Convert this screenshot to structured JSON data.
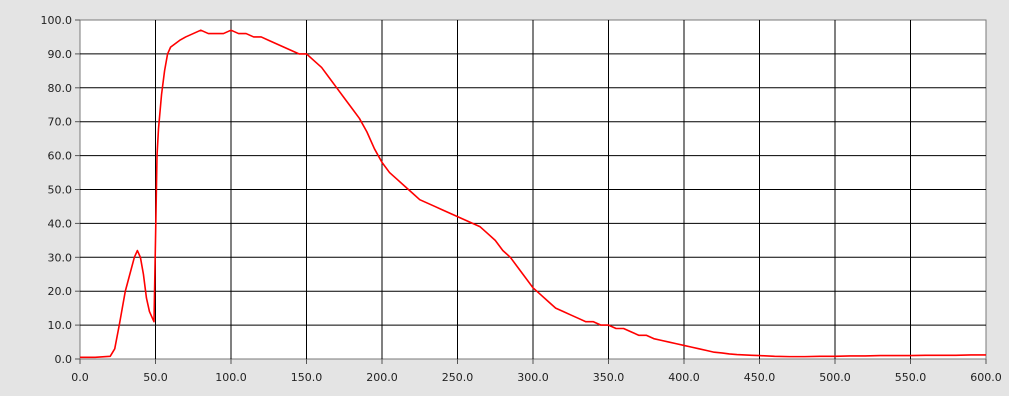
{
  "chart_data": {
    "type": "line",
    "title": "",
    "xlabel": "",
    "ylabel": "",
    "xlim": [
      0,
      600
    ],
    "ylim": [
      0,
      100
    ],
    "x_ticks": [
      "0.0",
      "50.0",
      "100.0",
      "150.0",
      "200.0",
      "250.0",
      "300.0",
      "350.0",
      "400.0",
      "450.0",
      "500.0",
      "550.0",
      "600.0"
    ],
    "y_ticks": [
      "0.0",
      "10.0",
      "20.0",
      "30.0",
      "40.0",
      "50.0",
      "60.0",
      "70.0",
      "80.0",
      "90.0",
      "100.0"
    ],
    "grid": true,
    "legend": "none",
    "colors": {
      "series": "#ff0000",
      "grid": "#000000",
      "plot_bg": "#ffffff",
      "frame_bg": "#e4e4e4"
    },
    "series": [
      {
        "x": [
          0,
          10,
          20,
          23,
          26,
          28,
          30,
          33,
          36,
          38,
          40,
          42,
          44,
          46,
          48,
          49,
          50,
          51,
          52,
          54,
          56,
          58,
          60,
          63,
          66,
          70,
          75,
          80,
          85,
          90,
          95,
          100,
          105,
          110,
          115,
          120,
          125,
          130,
          135,
          140,
          145,
          150,
          155,
          160,
          165,
          170,
          175,
          180,
          185,
          190,
          195,
          200,
          205,
          210,
          215,
          220,
          225,
          230,
          235,
          240,
          245,
          250,
          255,
          260,
          265,
          270,
          275,
          280,
          285,
          290,
          295,
          300,
          305,
          310,
          315,
          320,
          325,
          330,
          335,
          340,
          345,
          350,
          355,
          360,
          365,
          370,
          375,
          380,
          385,
          390,
          395,
          400,
          405,
          410,
          415,
          420,
          425,
          430,
          435,
          440,
          445,
          450,
          460,
          470,
          480,
          490,
          500,
          510,
          520,
          530,
          540,
          550,
          560,
          570,
          580,
          590,
          600
        ],
        "y": [
          0.5,
          0.5,
          0.8,
          3,
          10,
          15,
          20,
          25,
          30,
          32,
          30,
          25,
          18,
          14,
          12,
          11,
          35,
          60,
          68,
          78,
          85,
          90,
          92,
          93,
          94,
          95,
          96,
          97,
          96,
          96,
          96,
          97,
          96,
          96,
          95,
          95,
          94,
          93,
          92,
          91,
          90,
          90,
          88,
          86,
          83,
          80,
          77,
          74,
          71,
          67,
          62,
          58,
          55,
          53,
          51,
          49,
          47,
          46,
          45,
          44,
          43,
          42,
          41,
          40,
          39,
          37,
          35,
          32,
          30,
          27,
          24,
          21,
          19,
          17,
          15,
          14,
          13,
          12,
          11,
          11,
          10,
          10,
          9,
          9,
          8,
          7,
          7,
          6,
          5.5,
          5,
          4.5,
          4,
          3.5,
          3,
          2.5,
          2,
          1.8,
          1.5,
          1.3,
          1.2,
          1.1,
          1,
          0.8,
          0.7,
          0.7,
          0.8,
          0.8,
          0.9,
          0.9,
          1,
          1,
          1,
          1.1,
          1.1,
          1.1,
          1.2,
          1.2
        ]
      }
    ]
  }
}
